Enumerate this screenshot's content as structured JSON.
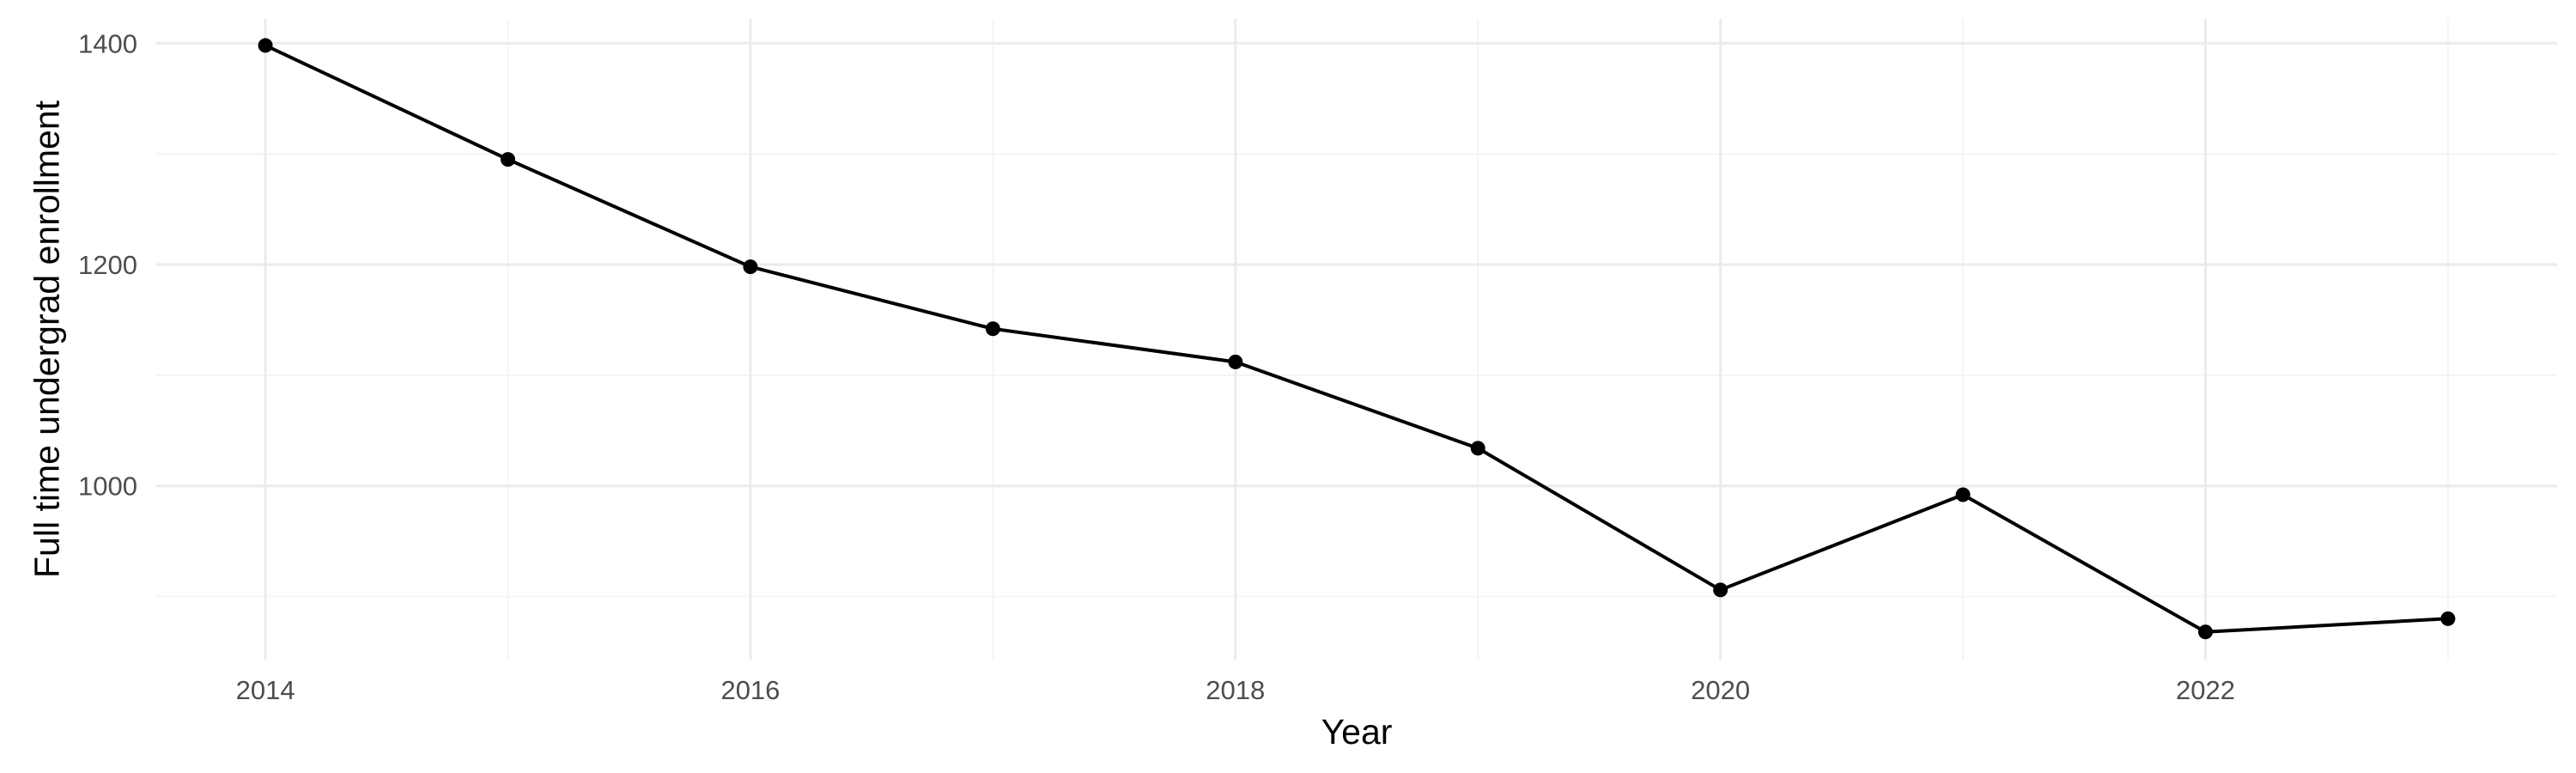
{
  "chart_data": {
    "type": "line",
    "xlabel": "Year",
    "ylabel": "Full time undergrad enrollment",
    "x": [
      2014,
      2015,
      2016,
      2017,
      2018,
      2019,
      2020,
      2021,
      2022,
      2023
    ],
    "series": [
      {
        "values": [
          1398,
          1295,
          1198,
          1142,
          1112,
          1034,
          906,
          992,
          868,
          880
        ]
      }
    ],
    "x_ticks": [
      2014,
      2016,
      2018,
      2020,
      2022
    ],
    "y_ticks": [
      1000,
      1200,
      1400
    ],
    "xlim": [
      2013.55,
      2023.45
    ],
    "ylim": [
      843,
      1422
    ],
    "grid": true,
    "colors": {
      "line": "#000000",
      "grid": "#ebebeb",
      "text": "#4d4d4d"
    }
  }
}
